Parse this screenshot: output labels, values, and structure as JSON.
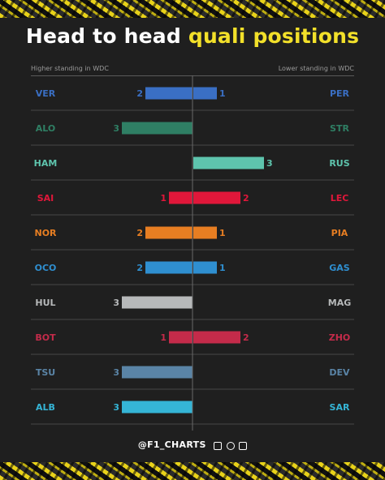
{
  "title": {
    "main": "Head to head",
    "highlight": "quali positions"
  },
  "labels": {
    "left": "Higher standing in WDC",
    "right": "Lower standing in WDC"
  },
  "footer": {
    "brand": "@F1_CHARTS"
  },
  "icons": [
    "instagram-icon",
    "threads-icon",
    "facebook-icon"
  ],
  "colors": {
    "title_highlight": "#f2e02a",
    "background": "#1f1f1f",
    "divider": "#4a4a4a"
  },
  "chart_data": {
    "type": "bar",
    "orientation": "horizontal-diverging",
    "title": "Head to head quali positions",
    "xlim": [
      -3,
      3
    ],
    "rows": [
      {
        "left": "VER",
        "right": "PER",
        "left_value": 2,
        "right_value": 1,
        "color": "#3a6fc4"
      },
      {
        "left": "ALO",
        "right": "STR",
        "left_value": 3,
        "right_value": 0,
        "color": "#2f7f64"
      },
      {
        "left": "HAM",
        "right": "RUS",
        "left_value": 0,
        "right_value": 3,
        "color": "#5ec4ad"
      },
      {
        "left": "SAI",
        "right": "LEC",
        "left_value": 1,
        "right_value": 2,
        "color": "#e0173a"
      },
      {
        "left": "NOR",
        "right": "PIA",
        "left_value": 2,
        "right_value": 1,
        "color": "#e77e22"
      },
      {
        "left": "OCO",
        "right": "GAS",
        "left_value": 2,
        "right_value": 1,
        "color": "#2f8fd0"
      },
      {
        "left": "HUL",
        "right": "MAG",
        "left_value": 3,
        "right_value": 0,
        "color": "#b7b9ba"
      },
      {
        "left": "BOT",
        "right": "ZHO",
        "left_value": 1,
        "right_value": 2,
        "color": "#c42b4a"
      },
      {
        "left": "TSU",
        "right": "DEV",
        "left_value": 3,
        "right_value": 0,
        "color": "#5a84a6"
      },
      {
        "left": "ALB",
        "right": "SAR",
        "left_value": 3,
        "right_value": 0,
        "color": "#35b5d6"
      }
    ]
  }
}
